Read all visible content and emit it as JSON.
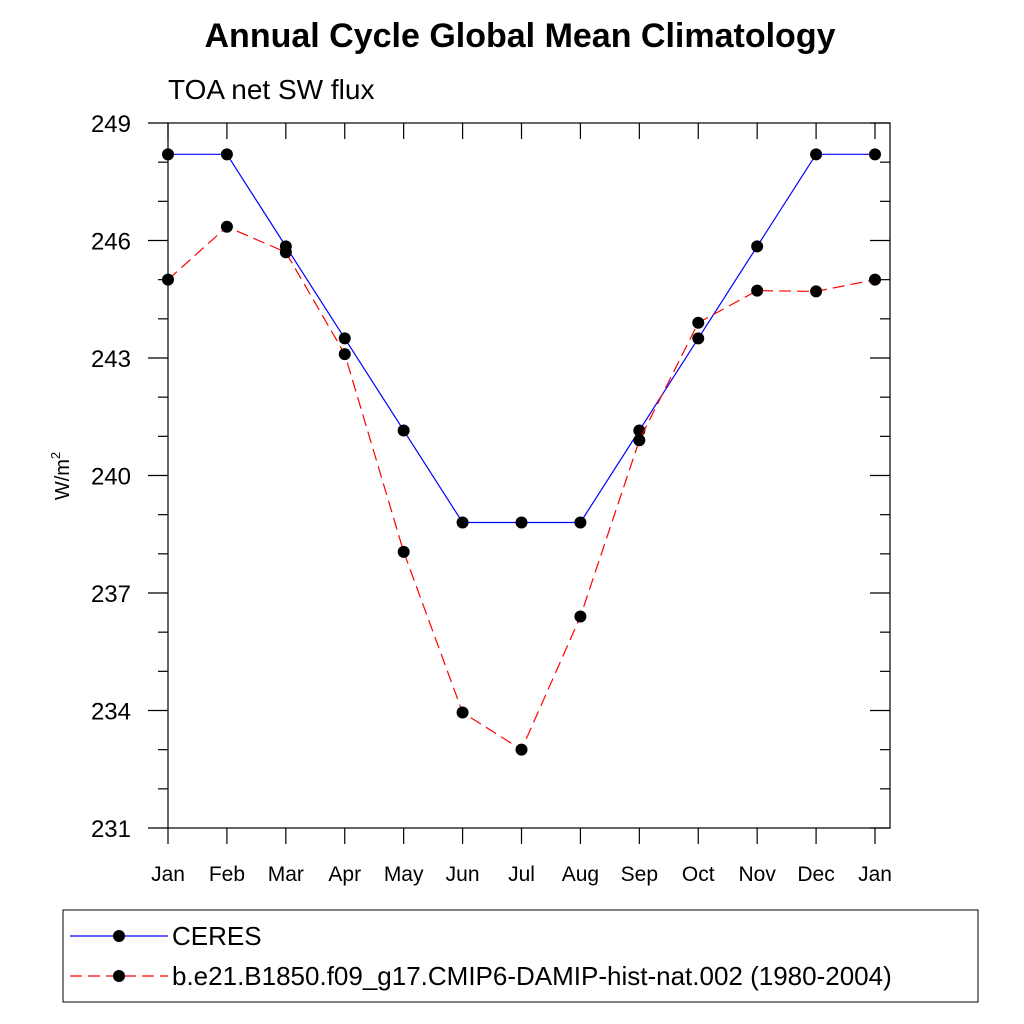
{
  "chart_data": {
    "type": "line",
    "title": "Annual Cycle Global Mean Climatology",
    "subtitle": "TOA net SW flux",
    "ylabel": "W/m",
    "ylabel_superscript": "2",
    "xlabel": "",
    "categories": [
      "Jan",
      "Feb",
      "Mar",
      "Apr",
      "May",
      "Jun",
      "Jul",
      "Aug",
      "Sep",
      "Oct",
      "Nov",
      "Dec",
      "Jan"
    ],
    "ylim": [
      231,
      249
    ],
    "yticks": [
      231,
      234,
      237,
      240,
      243,
      246,
      249
    ],
    "series": [
      {
        "name": "CERES",
        "color": "#0000ff",
        "dash": "solid",
        "values": [
          248.2,
          248.2,
          245.85,
          243.5,
          241.15,
          238.8,
          238.8,
          238.8,
          241.15,
          243.5,
          245.85,
          248.2,
          248.2
        ]
      },
      {
        "name": "b.e21.B1850.f09_g17.CMIP6-DAMIP-hist-nat.002 (1980-2004)",
        "color": "#ff0000",
        "dash": "dashed",
        "values": [
          245.0,
          246.35,
          245.7,
          243.1,
          238.05,
          233.95,
          233.0,
          236.4,
          240.9,
          243.9,
          244.72,
          244.7,
          245.0
        ]
      }
    ]
  }
}
